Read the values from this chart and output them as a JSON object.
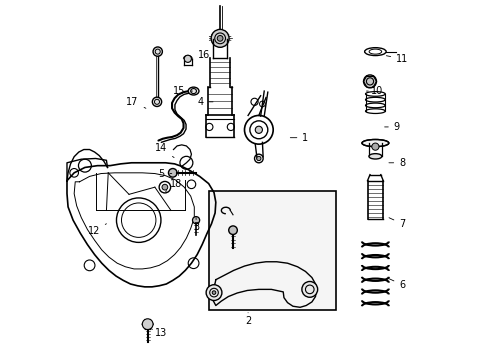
{
  "background_color": "#ffffff",
  "line_color": "#000000",
  "fig_width": 4.89,
  "fig_height": 3.6,
  "dpi": 100,
  "annotation_fontsize": 7.0,
  "label_positions": {
    "1": [
      0.67,
      0.618,
      0.62,
      0.618
    ],
    "2": [
      0.51,
      0.108,
      0.51,
      0.13
    ],
    "3": [
      0.365,
      0.368,
      0.365,
      0.395
    ],
    "4": [
      0.378,
      0.718,
      0.42,
      0.718
    ],
    "5": [
      0.268,
      0.518,
      0.305,
      0.518
    ],
    "6": [
      0.94,
      0.208,
      0.896,
      0.228
    ],
    "7": [
      0.94,
      0.378,
      0.896,
      0.398
    ],
    "8": [
      0.94,
      0.548,
      0.895,
      0.548
    ],
    "9": [
      0.925,
      0.648,
      0.883,
      0.648
    ],
    "10": [
      0.87,
      0.748,
      0.84,
      0.748
    ],
    "11": [
      0.94,
      0.838,
      0.888,
      0.848
    ],
    "12": [
      0.08,
      0.358,
      0.115,
      0.378
    ],
    "13": [
      0.268,
      0.072,
      0.24,
      0.085
    ],
    "14": [
      0.268,
      0.588,
      0.31,
      0.558
    ],
    "15": [
      0.318,
      0.748,
      0.355,
      0.748
    ],
    "16": [
      0.388,
      0.848,
      0.348,
      0.835
    ],
    "17": [
      0.188,
      0.718,
      0.225,
      0.7
    ],
    "18": [
      0.308,
      0.488,
      0.28,
      0.468
    ]
  }
}
